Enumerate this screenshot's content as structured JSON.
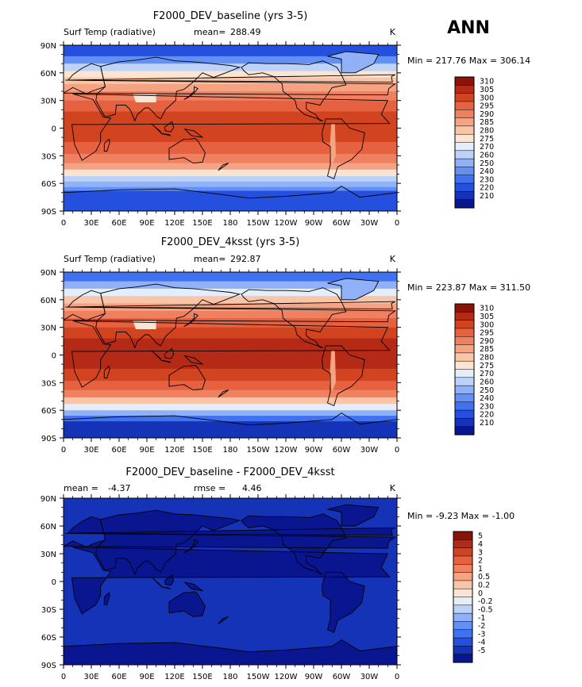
{
  "figure": {
    "season": "ANN",
    "colors": {
      "abs_levels": [
        "#0a0a82",
        "#0d1fb0",
        "#1232cf",
        "#1846e3",
        "#2a60f0",
        "#3f78f5",
        "#6293f7",
        "#88acf8",
        "#a9c4f9",
        "#c8daf9",
        "#e6eefa",
        "#fde8d8",
        "#fcd0b6",
        "#fbb595",
        "#fa9b78",
        "#f2805d",
        "#e86546",
        "#d84b30",
        "#c4351f",
        "#a82213",
        "#8a1206"
      ],
      "diff_levels": [
        "#0a0a82",
        "#0d1fb0",
        "#1232cf",
        "#1846e3",
        "#2a60f0",
        "#3f78f5",
        "#6293f7",
        "#88acf8",
        "#a9c4f9",
        "#c8daf9",
        "#e6eefa",
        "#fde8d8",
        "#fcd0b6",
        "#fbb595",
        "#fa9b78",
        "#f2805d",
        "#e86546",
        "#d84b30",
        "#c4351f",
        "#a82213",
        "#8a1206"
      ],
      "land_outline": "#000000"
    }
  },
  "chart_data": [
    {
      "type": "heatmap",
      "title": "F2000_DEV_baseline (yrs 3-5)",
      "left_label": "Surf Temp (radiative)",
      "mean_label": "mean=",
      "mean_value": "288.49",
      "units": "K",
      "minmax_text": "Min = 217.76 Max = 306.14",
      "min": 217.76,
      "max": 306.14,
      "xticks": [
        "0",
        "30E",
        "60E",
        "90E",
        "120E",
        "150E",
        "180",
        "150W",
        "120W",
        "90W",
        "60W",
        "30W",
        "0"
      ],
      "yticks": [
        "90N",
        "60N",
        "30N",
        "0",
        "30S",
        "60S",
        "90S"
      ],
      "colorbar_levels": [
        "310",
        "305",
        "300",
        "295",
        "290",
        "285",
        "280",
        "275",
        "270",
        "260",
        "250",
        "240",
        "230",
        "220",
        "210"
      ],
      "colorbar_fills": [
        "#8a1206",
        "#b42a17",
        "#d2431f",
        "#e56140",
        "#ef8060",
        "#f6a383",
        "#f9c5a8",
        "#fbe4d2",
        "#e4edfa",
        "#bcd2f8",
        "#90b1f7",
        "#6390f5",
        "#3f71f0",
        "#2450dd",
        "#1433b7",
        "#0a1590"
      ]
    },
    {
      "type": "heatmap",
      "title": "F2000_DEV_4ksst (yrs 3-5)",
      "left_label": "Surf Temp (radiative)",
      "mean_label": "mean=",
      "mean_value": "292.87",
      "units": "K",
      "minmax_text": "Min = 223.87 Max = 311.50",
      "min": 223.87,
      "max": 311.5,
      "xticks": [
        "0",
        "30E",
        "60E",
        "90E",
        "120E",
        "150E",
        "180",
        "150W",
        "120W",
        "90W",
        "60W",
        "30W",
        "0"
      ],
      "yticks": [
        "90N",
        "60N",
        "30N",
        "0",
        "30S",
        "60S",
        "90S"
      ],
      "colorbar_levels": [
        "310",
        "305",
        "300",
        "295",
        "290",
        "285",
        "280",
        "275",
        "270",
        "260",
        "250",
        "240",
        "230",
        "220",
        "210"
      ],
      "colorbar_fills": [
        "#8a1206",
        "#b42a17",
        "#d2431f",
        "#e56140",
        "#ef8060",
        "#f6a383",
        "#f9c5a8",
        "#fbe4d2",
        "#e4edfa",
        "#bcd2f8",
        "#90b1f7",
        "#6390f5",
        "#3f71f0",
        "#2450dd",
        "#1433b7",
        "#0a1590"
      ]
    },
    {
      "type": "heatmap",
      "title": "F2000_DEV_baseline - F2000_DEV_4ksst",
      "mean_label": "mean =",
      "mean_value": "-4.37",
      "rmse_label": "rmse =",
      "rmse_value": "4.46",
      "units": "K",
      "minmax_text": "Min = -9.23 Max = -1.00",
      "min": -9.23,
      "max": -1.0,
      "xticks": [
        "0",
        "30E",
        "60E",
        "90E",
        "120E",
        "150E",
        "180",
        "150W",
        "120W",
        "90W",
        "60W",
        "30W",
        "0"
      ],
      "yticks": [
        "90N",
        "60N",
        "30N",
        "0",
        "30S",
        "60S",
        "90S"
      ],
      "colorbar_levels": [
        "5",
        "4",
        "3",
        "2",
        "1",
        "0.5",
        "0.2",
        "0",
        "-0.2",
        "-0.5",
        "-1",
        "-2",
        "-3",
        "-4",
        "-5"
      ],
      "colorbar_fills": [
        "#8a1206",
        "#b42a17",
        "#d2431f",
        "#e56140",
        "#ef8060",
        "#f6a383",
        "#f9c5a8",
        "#fbe4d2",
        "#e4edfa",
        "#bcd2f8",
        "#90b1f7",
        "#6390f5",
        "#3f71f0",
        "#2450dd",
        "#1433b7",
        "#0a1590"
      ]
    }
  ]
}
